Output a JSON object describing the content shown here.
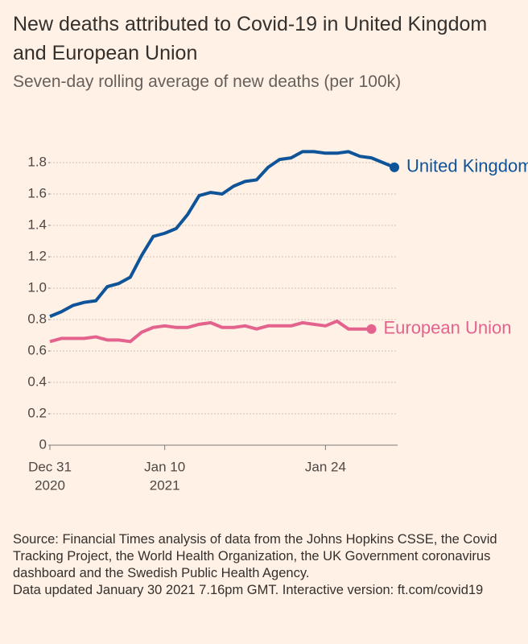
{
  "chart_data": {
    "type": "line",
    "title": "New deaths attributed to Covid-19 in United Kingdom and European Union",
    "subtitle": "Seven-day rolling average of new deaths (per 100k)",
    "source": "Source: Financial Times analysis of data from the Johns Hopkins CSSE, the Covid Tracking Project, the World Health Organization, the UK Government coronavirus dashboard and the Swedish Public Health Agency.",
    "note": "Data updated January 30 2021 7.16pm GMT. Interactive version: ft.com/covid19",
    "x": [
      "2020-12-31",
      "2021-01-01",
      "2021-01-02",
      "2021-01-03",
      "2021-01-04",
      "2021-01-05",
      "2021-01-06",
      "2021-01-07",
      "2021-01-08",
      "2021-01-09",
      "2021-01-10",
      "2021-01-11",
      "2021-01-12",
      "2021-01-13",
      "2021-01-14",
      "2021-01-15",
      "2021-01-16",
      "2021-01-17",
      "2021-01-18",
      "2021-01-19",
      "2021-01-20",
      "2021-01-21",
      "2021-01-22",
      "2021-01-23",
      "2021-01-24",
      "2021-01-25",
      "2021-01-26",
      "2021-01-27",
      "2021-01-28",
      "2021-01-29",
      "2021-01-30"
    ],
    "series": [
      {
        "name": "United Kingdom",
        "color": "#0f5499",
        "values": [
          0.82,
          0.85,
          0.89,
          0.91,
          0.92,
          1.01,
          1.03,
          1.07,
          1.21,
          1.33,
          1.35,
          1.38,
          1.47,
          1.59,
          1.61,
          1.6,
          1.65,
          1.68,
          1.69,
          1.77,
          1.82,
          1.83,
          1.87,
          1.87,
          1.86,
          1.86,
          1.87,
          1.84,
          1.83,
          1.8,
          1.77
        ]
      },
      {
        "name": "European Union",
        "color": "#e3628e",
        "values": [
          0.66,
          0.68,
          0.68,
          0.68,
          0.69,
          0.67,
          0.67,
          0.66,
          0.72,
          0.75,
          0.76,
          0.75,
          0.75,
          0.77,
          0.78,
          0.75,
          0.75,
          0.76,
          0.74,
          0.76,
          0.76,
          0.76,
          0.78,
          0.77,
          0.76,
          0.79,
          0.74,
          0.74,
          0.74,
          null,
          null
        ]
      }
    ],
    "xlim": [
      "2020-12-31",
      "2021-01-30"
    ],
    "xticks": [
      {
        "value": "2020-12-31",
        "label": [
          "Dec 31",
          "2020"
        ]
      },
      {
        "value": "2021-01-10",
        "label": [
          "Jan 10",
          "2021"
        ]
      },
      {
        "value": "2021-01-24",
        "label": [
          "Jan 24"
        ]
      }
    ],
    "ylim": [
      0,
      1.8
    ],
    "yticks": [
      0,
      0.2,
      0.4,
      0.6,
      0.8,
      {
        "value": 1,
        "label": "1.0"
      },
      1.2,
      1.4,
      1.6,
      1.8
    ],
    "grid": true
  }
}
